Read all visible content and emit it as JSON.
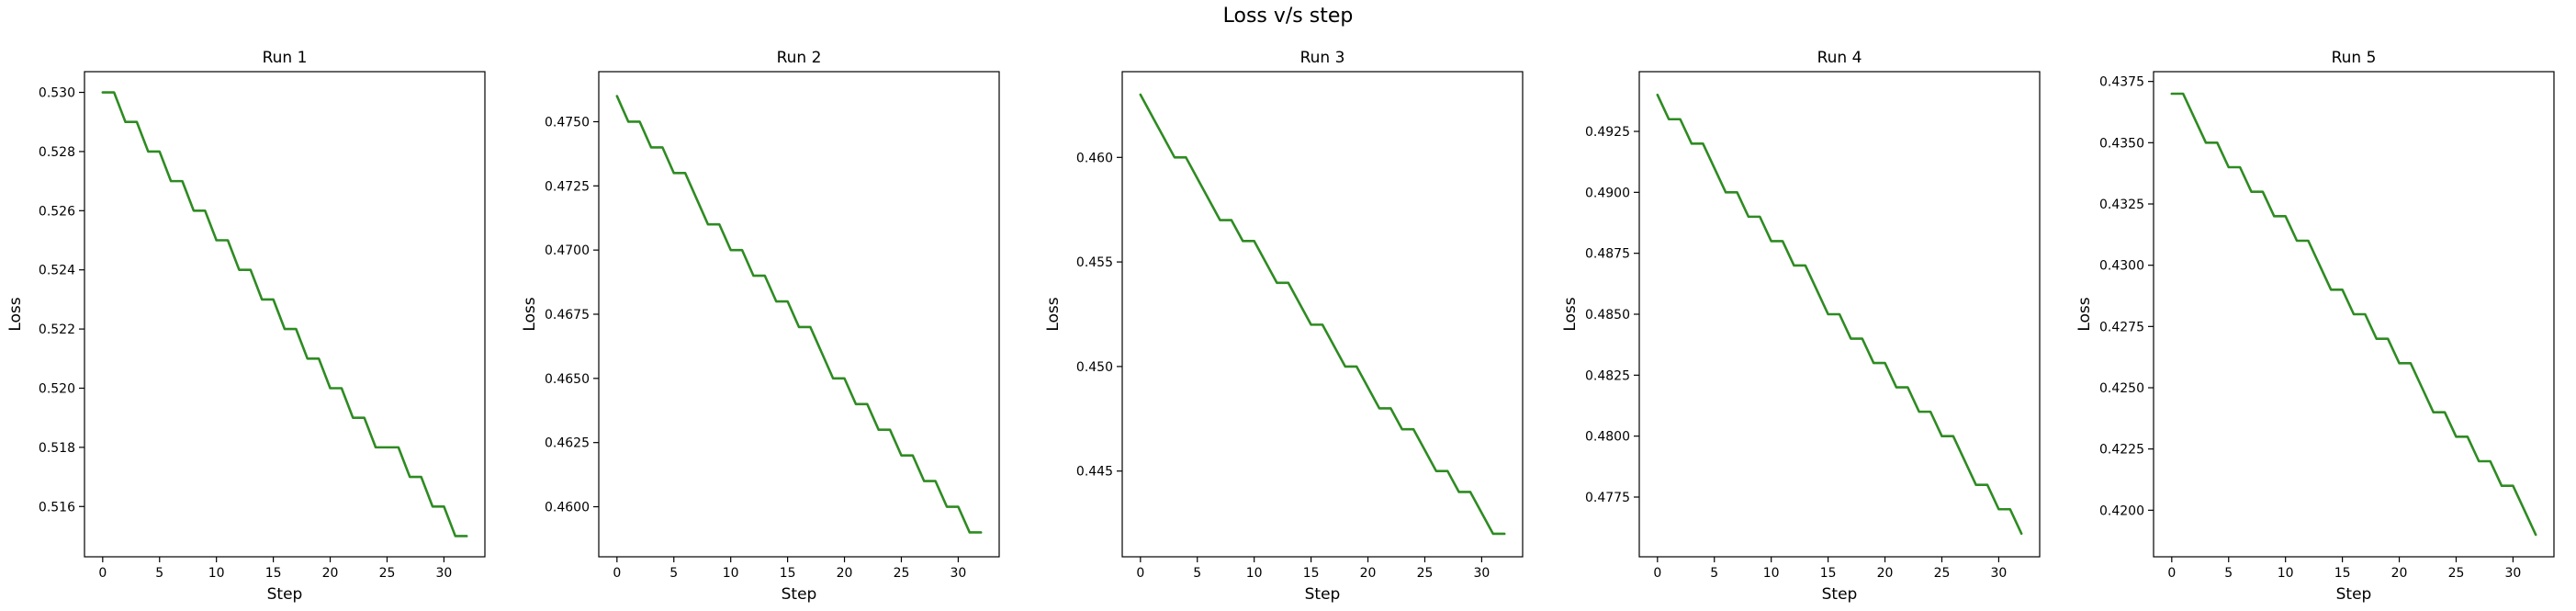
{
  "figure": {
    "title": "Loss v/s step"
  },
  "style": {
    "line_color": "#2e8b22",
    "axis_color": "#000000",
    "background": "#ffffff"
  },
  "chart_data": [
    {
      "type": "line",
      "title": "Run 1",
      "xlabel": "Step",
      "ylabel": "Loss",
      "grid": false,
      "xlim": [
        -1.6,
        33.6
      ],
      "ylim": [
        0.5143,
        0.5307
      ],
      "xticks": [
        0,
        5,
        10,
        15,
        20,
        25,
        30
      ],
      "xtick_labels": [
        "0",
        "5",
        "10",
        "15",
        "20",
        "25",
        "30"
      ],
      "yticks": [
        0.516,
        0.518,
        0.52,
        0.522,
        0.524,
        0.526,
        0.528,
        0.53
      ],
      "ytick_labels": [
        "0.516",
        "0.518",
        "0.520",
        "0.522",
        "0.524",
        "0.526",
        "0.528",
        "0.530"
      ],
      "x": [
        0,
        1,
        2,
        3,
        4,
        5,
        6,
        7,
        8,
        9,
        10,
        11,
        12,
        13,
        14,
        15,
        16,
        17,
        18,
        19,
        20,
        21,
        22,
        23,
        24,
        25,
        26,
        27,
        28,
        29,
        30,
        31,
        32
      ],
      "series": [
        {
          "values": [
            0.53,
            0.53,
            0.529,
            0.529,
            0.528,
            0.528,
            0.527,
            0.527,
            0.526,
            0.526,
            0.525,
            0.525,
            0.524,
            0.524,
            0.523,
            0.523,
            0.522,
            0.522,
            0.521,
            0.521,
            0.52,
            0.52,
            0.519,
            0.519,
            0.518,
            0.518,
            0.518,
            0.517,
            0.517,
            0.516,
            0.516,
            0.515,
            0.515
          ]
        }
      ]
    },
    {
      "type": "line",
      "title": "Run 2",
      "xlabel": "Step",
      "ylabel": "Loss",
      "grid": false,
      "xlim": [
        -1.6,
        33.6
      ],
      "ylim": [
        0.45805,
        0.47695
      ],
      "xticks": [
        0,
        5,
        10,
        15,
        20,
        25,
        30
      ],
      "xtick_labels": [
        "0",
        "5",
        "10",
        "15",
        "20",
        "25",
        "30"
      ],
      "yticks": [
        0.46,
        0.4625,
        0.465,
        0.4675,
        0.47,
        0.4725,
        0.475
      ],
      "ytick_labels": [
        "0.4600",
        "0.4625",
        "0.4650",
        "0.4675",
        "0.4700",
        "0.4725",
        "0.4750"
      ],
      "x": [
        0,
        1,
        2,
        3,
        4,
        5,
        6,
        7,
        8,
        9,
        10,
        11,
        12,
        13,
        14,
        15,
        16,
        17,
        18,
        19,
        20,
        21,
        22,
        23,
        24,
        25,
        26,
        27,
        28,
        29,
        30,
        31,
        32
      ],
      "series": [
        {
          "values": [
            0.476,
            0.475,
            0.475,
            0.474,
            0.474,
            0.473,
            0.473,
            0.472,
            0.471,
            0.471,
            0.47,
            0.47,
            0.469,
            0.469,
            0.468,
            0.468,
            0.467,
            0.467,
            0.466,
            0.465,
            0.465,
            0.464,
            0.464,
            0.463,
            0.463,
            0.462,
            0.462,
            0.461,
            0.461,
            0.46,
            0.46,
            0.459,
            0.459
          ]
        }
      ]
    },
    {
      "type": "line",
      "title": "Run 3",
      "xlabel": "Step",
      "ylabel": "Loss",
      "grid": false,
      "xlim": [
        -1.6,
        33.6
      ],
      "ylim": [
        0.4409,
        0.4641
      ],
      "xticks": [
        0,
        5,
        10,
        15,
        20,
        25,
        30
      ],
      "xtick_labels": [
        "0",
        "5",
        "10",
        "15",
        "20",
        "25",
        "30"
      ],
      "yticks": [
        0.445,
        0.45,
        0.455,
        0.46
      ],
      "ytick_labels": [
        "0.445",
        "0.450",
        "0.455",
        "0.460"
      ],
      "x": [
        0,
        1,
        2,
        3,
        4,
        5,
        6,
        7,
        8,
        9,
        10,
        11,
        12,
        13,
        14,
        15,
        16,
        17,
        18,
        19,
        20,
        21,
        22,
        23,
        24,
        25,
        26,
        27,
        28,
        29,
        30,
        31,
        32
      ],
      "series": [
        {
          "values": [
            0.463,
            0.462,
            0.461,
            0.46,
            0.46,
            0.459,
            0.458,
            0.457,
            0.457,
            0.456,
            0.456,
            0.455,
            0.454,
            0.454,
            0.453,
            0.452,
            0.452,
            0.451,
            0.45,
            0.45,
            0.449,
            0.448,
            0.448,
            0.447,
            0.447,
            0.446,
            0.445,
            0.445,
            0.444,
            0.444,
            0.443,
            0.442,
            0.442
          ]
        }
      ]
    },
    {
      "type": "line",
      "title": "Run 4",
      "xlabel": "Step",
      "ylabel": "Loss",
      "grid": false,
      "xlim": [
        -1.6,
        33.6
      ],
      "ylim": [
        0.47505,
        0.49495
      ],
      "xticks": [
        0,
        5,
        10,
        15,
        20,
        25,
        30
      ],
      "xtick_labels": [
        "0",
        "5",
        "10",
        "15",
        "20",
        "25",
        "30"
      ],
      "yticks": [
        0.4775,
        0.48,
        0.4825,
        0.485,
        0.4875,
        0.49,
        0.4925
      ],
      "ytick_labels": [
        "0.4775",
        "0.4800",
        "0.4825",
        "0.4850",
        "0.4875",
        "0.4900",
        "0.4925"
      ],
      "x": [
        0,
        1,
        2,
        3,
        4,
        5,
        6,
        7,
        8,
        9,
        10,
        11,
        12,
        13,
        14,
        15,
        16,
        17,
        18,
        19,
        20,
        21,
        22,
        23,
        24,
        25,
        26,
        27,
        28,
        29,
        30,
        31,
        32
      ],
      "series": [
        {
          "values": [
            0.494,
            0.493,
            0.493,
            0.492,
            0.492,
            0.491,
            0.49,
            0.49,
            0.489,
            0.489,
            0.488,
            0.488,
            0.487,
            0.487,
            0.486,
            0.485,
            0.485,
            0.484,
            0.484,
            0.483,
            0.483,
            0.482,
            0.482,
            0.481,
            0.481,
            0.48,
            0.48,
            0.479,
            0.478,
            0.478,
            0.477,
            0.477,
            0.476
          ]
        }
      ]
    },
    {
      "type": "line",
      "title": "Run 5",
      "xlabel": "Step",
      "ylabel": "Loss",
      "grid": false,
      "xlim": [
        -1.6,
        33.6
      ],
      "ylim": [
        0.4181,
        0.4379
      ],
      "xticks": [
        0,
        5,
        10,
        15,
        20,
        25,
        30
      ],
      "xtick_labels": [
        "0",
        "5",
        "10",
        "15",
        "20",
        "25",
        "30"
      ],
      "yticks": [
        0.42,
        0.4225,
        0.425,
        0.4275,
        0.43,
        0.4325,
        0.435,
        0.4375
      ],
      "ytick_labels": [
        "0.4200",
        "0.4225",
        "0.4250",
        "0.4275",
        "0.4300",
        "0.4325",
        "0.4350",
        "0.4375"
      ],
      "x": [
        0,
        1,
        2,
        3,
        4,
        5,
        6,
        7,
        8,
        9,
        10,
        11,
        12,
        13,
        14,
        15,
        16,
        17,
        18,
        19,
        20,
        21,
        22,
        23,
        24,
        25,
        26,
        27,
        28,
        29,
        30,
        31,
        32
      ],
      "series": [
        {
          "values": [
            0.437,
            0.437,
            0.436,
            0.435,
            0.435,
            0.434,
            0.434,
            0.433,
            0.433,
            0.432,
            0.432,
            0.431,
            0.431,
            0.43,
            0.429,
            0.429,
            0.428,
            0.428,
            0.427,
            0.427,
            0.426,
            0.426,
            0.425,
            0.424,
            0.424,
            0.423,
            0.423,
            0.422,
            0.422,
            0.421,
            0.421,
            0.42,
            0.419
          ]
        }
      ]
    }
  ]
}
